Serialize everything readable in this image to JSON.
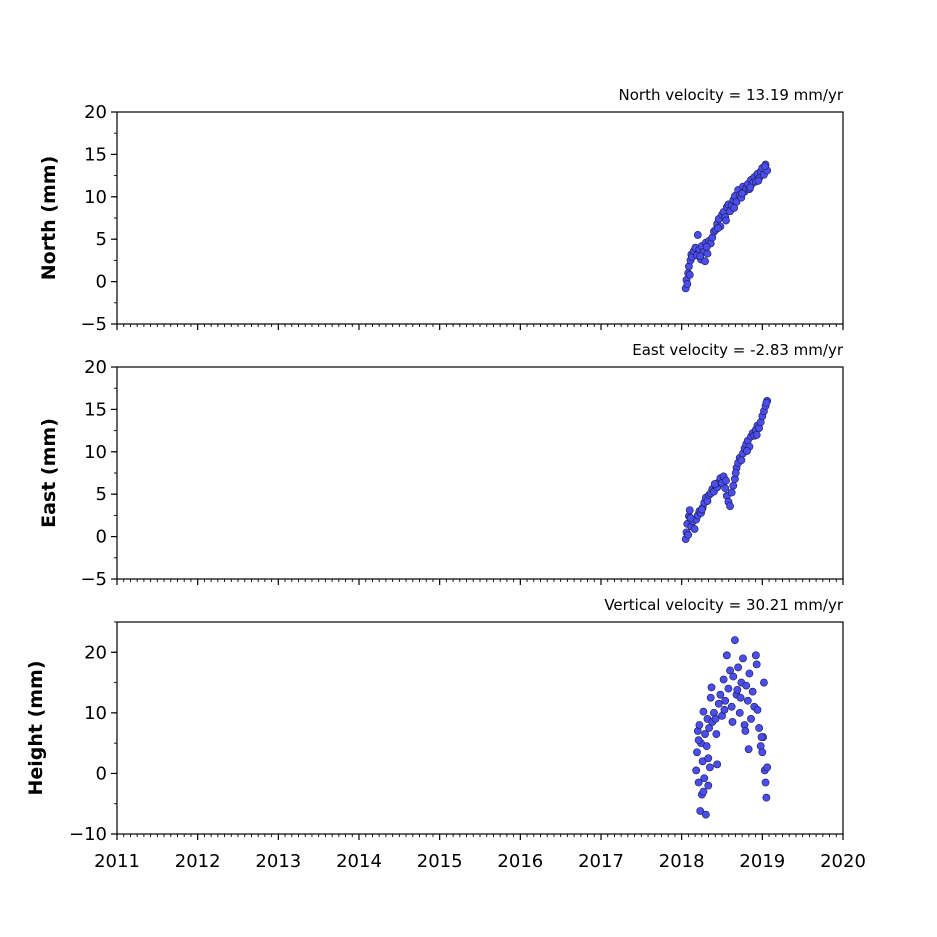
{
  "chart_data": [
    {
      "type": "scatter",
      "title": "North velocity = 13.19 mm/yr",
      "ylabel": "North (mm)",
      "xlabel": "",
      "xlim": [
        2011,
        2020
      ],
      "ylim": [
        -5,
        20
      ],
      "x_ticks": [
        "2011",
        "2012",
        "2013",
        "2014",
        "2015",
        "2016",
        "2017",
        "2018",
        "2019",
        "2020"
      ],
      "y_ticks": [
        -5,
        0,
        5,
        10,
        15,
        20
      ],
      "y_tick_labels": [
        "−5",
        "0",
        "5",
        "10",
        "15",
        "20"
      ],
      "show_x_tick_labels": false,
      "marker_color": "#4a4df0",
      "x": [
        2018.05,
        2018.06,
        2018.07,
        2018.08,
        2018.09,
        2018.1,
        2018.11,
        2018.12,
        2018.13,
        2018.15,
        2018.17,
        2018.19,
        2018.2,
        2018.22,
        2018.24,
        2018.25,
        2018.27,
        2018.29,
        2018.3,
        2018.32,
        2018.34,
        2018.36,
        2018.38,
        2018.4,
        2018.42,
        2018.44,
        2018.46,
        2018.48,
        2018.5,
        2018.52,
        2018.54,
        2018.56,
        2018.58,
        2018.6,
        2018.62,
        2018.64,
        2018.66,
        2018.68,
        2018.7,
        2018.72,
        2018.74,
        2018.76,
        2018.78,
        2018.8,
        2018.82,
        2018.84,
        2018.86,
        2018.88,
        2018.9,
        2018.92,
        2018.94,
        2018.96,
        2018.98,
        2019.0,
        2019.02,
        2019.04,
        2019.06,
        2018.23,
        2018.31,
        2018.45,
        2018.55,
        2018.65,
        2018.75,
        2018.85,
        2018.95,
        2019.03
      ],
      "y": [
        -0.8,
        0.2,
        -0.3,
        1.0,
        1.8,
        0.8,
        2.5,
        3.2,
        2.9,
        3.6,
        4.0,
        3.1,
        5.5,
        3.8,
        2.6,
        4.2,
        3.5,
        2.4,
        4.6,
        3.3,
        4.8,
        4.5,
        5.2,
        5.9,
        6.1,
        6.8,
        7.4,
        6.5,
        7.9,
        8.2,
        7.6,
        8.8,
        9.1,
        8.3,
        9.0,
        9.6,
        10.1,
        9.4,
        10.8,
        10.2,
        9.9,
        11.2,
        10.6,
        11.0,
        11.5,
        10.9,
        12.0,
        11.6,
        12.3,
        11.8,
        12.7,
        12.2,
        13.0,
        13.4,
        12.6,
        13.8,
        13.1,
        3.0,
        4.1,
        6.3,
        7.2,
        8.7,
        10.4,
        11.1,
        11.9,
        13.6
      ]
    },
    {
      "type": "scatter",
      "title": "East velocity = -2.83 mm/yr",
      "ylabel": "East (mm)",
      "xlabel": "",
      "xlim": [
        2011,
        2020
      ],
      "ylim": [
        -5,
        20
      ],
      "x_ticks": [
        "2011",
        "2012",
        "2013",
        "2014",
        "2015",
        "2016",
        "2017",
        "2018",
        "2019",
        "2020"
      ],
      "y_ticks": [
        -5,
        0,
        5,
        10,
        15,
        20
      ],
      "y_tick_labels": [
        "−5",
        "0",
        "5",
        "10",
        "15",
        "20"
      ],
      "show_x_tick_labels": false,
      "marker_color": "#4a4df0",
      "x": [
        2018.05,
        2018.06,
        2018.07,
        2018.08,
        2018.09,
        2018.1,
        2018.12,
        2018.14,
        2018.16,
        2018.18,
        2018.2,
        2018.22,
        2018.24,
        2018.26,
        2018.28,
        2018.3,
        2018.32,
        2018.34,
        2018.36,
        2018.38,
        2018.4,
        2018.42,
        2018.44,
        2018.46,
        2018.48,
        2018.5,
        2018.52,
        2018.54,
        2018.56,
        2018.58,
        2018.6,
        2018.62,
        2018.64,
        2018.66,
        2018.68,
        2018.7,
        2018.72,
        2018.74,
        2018.76,
        2018.78,
        2018.8,
        2018.82,
        2018.84,
        2018.86,
        2018.88,
        2018.9,
        2018.92,
        2018.94,
        2018.96,
        2018.98,
        2019.0,
        2019.02,
        2019.04,
        2019.06,
        2018.11,
        2018.25,
        2018.41,
        2018.55,
        2018.67,
        2018.81,
        2018.93,
        2019.05
      ],
      "y": [
        -0.3,
        0.5,
        1.5,
        0.2,
        2.4,
        3.1,
        1.2,
        1.8,
        0.9,
        2.0,
        2.5,
        3.0,
        2.8,
        3.4,
        4.0,
        4.6,
        4.2,
        4.9,
        5.1,
        5.6,
        5.3,
        6.0,
        5.8,
        6.4,
        6.9,
        6.3,
        7.1,
        5.7,
        4.8,
        4.1,
        3.6,
        5.2,
        6.0,
        6.8,
        8.1,
        8.7,
        9.3,
        9.0,
        9.8,
        10.4,
        10.9,
        11.3,
        10.6,
        11.8,
        12.2,
        11.9,
        12.6,
        13.1,
        12.8,
        13.5,
        14.2,
        14.8,
        15.4,
        16.0,
        2.2,
        3.2,
        6.2,
        6.6,
        7.5,
        10.1,
        12.0,
        15.8
      ]
    },
    {
      "type": "scatter",
      "title": "Vertical velocity = 30.21 mm/yr",
      "ylabel": "Height (mm)",
      "xlabel": "",
      "xlim": [
        2011,
        2020
      ],
      "ylim": [
        -10,
        25
      ],
      "x_ticks": [
        "2011",
        "2012",
        "2013",
        "2014",
        "2015",
        "2016",
        "2017",
        "2018",
        "2019",
        "2020"
      ],
      "y_ticks": [
        -10,
        0,
        10,
        20
      ],
      "y_tick_labels": [
        "−10",
        "0",
        "10",
        "20"
      ],
      "show_x_tick_labels": true,
      "marker_color": "#4a4df0",
      "x": [
        2018.18,
        2018.19,
        2018.2,
        2018.21,
        2018.22,
        2018.23,
        2018.24,
        2018.25,
        2018.26,
        2018.27,
        2018.28,
        2018.29,
        2018.3,
        2018.31,
        2018.32,
        2018.33,
        2018.34,
        2018.35,
        2018.36,
        2018.37,
        2018.38,
        2018.4,
        2018.42,
        2018.44,
        2018.46,
        2018.48,
        2018.5,
        2018.52,
        2018.54,
        2018.56,
        2018.58,
        2018.6,
        2018.62,
        2018.64,
        2018.66,
        2018.68,
        2018.7,
        2018.72,
        2018.74,
        2018.76,
        2018.78,
        2018.8,
        2018.82,
        2018.84,
        2018.86,
        2018.88,
        2018.9,
        2018.92,
        2018.94,
        2018.96,
        2018.98,
        2019.0,
        2019.01,
        2019.02,
        2019.03,
        2019.04,
        2019.05,
        2019.06,
        2018.21,
        2018.27,
        2018.33,
        2018.43,
        2018.53,
        2018.63,
        2018.73,
        2018.83,
        2018.93,
        2018.99,
        2018.69,
        2018.79
      ],
      "y": [
        0.5,
        3.5,
        7.0,
        -1.5,
        8.0,
        -6.2,
        5.0,
        -3.5,
        2.0,
        10.2,
        -0.8,
        6.5,
        -6.8,
        4.5,
        9.0,
        -2.0,
        7.5,
        1.0,
        12.5,
        14.2,
        8.5,
        10.0,
        9.0,
        1.5,
        11.5,
        13.0,
        9.5,
        15.5,
        12.0,
        19.5,
        14.0,
        17.0,
        11.0,
        16.0,
        22.0,
        13.0,
        17.5,
        10.0,
        15.0,
        19.0,
        8.0,
        14.5,
        12.0,
        16.5,
        9.0,
        13.5,
        11.0,
        19.5,
        10.5,
        7.5,
        4.5,
        3.5,
        6.0,
        15.0,
        0.5,
        -1.5,
        -4.0,
        1.0,
        5.5,
        -3.0,
        2.5,
        6.5,
        10.5,
        8.5,
        12.5,
        4.0,
        18.0,
        6.0,
        13.8,
        7.0
      ]
    }
  ]
}
